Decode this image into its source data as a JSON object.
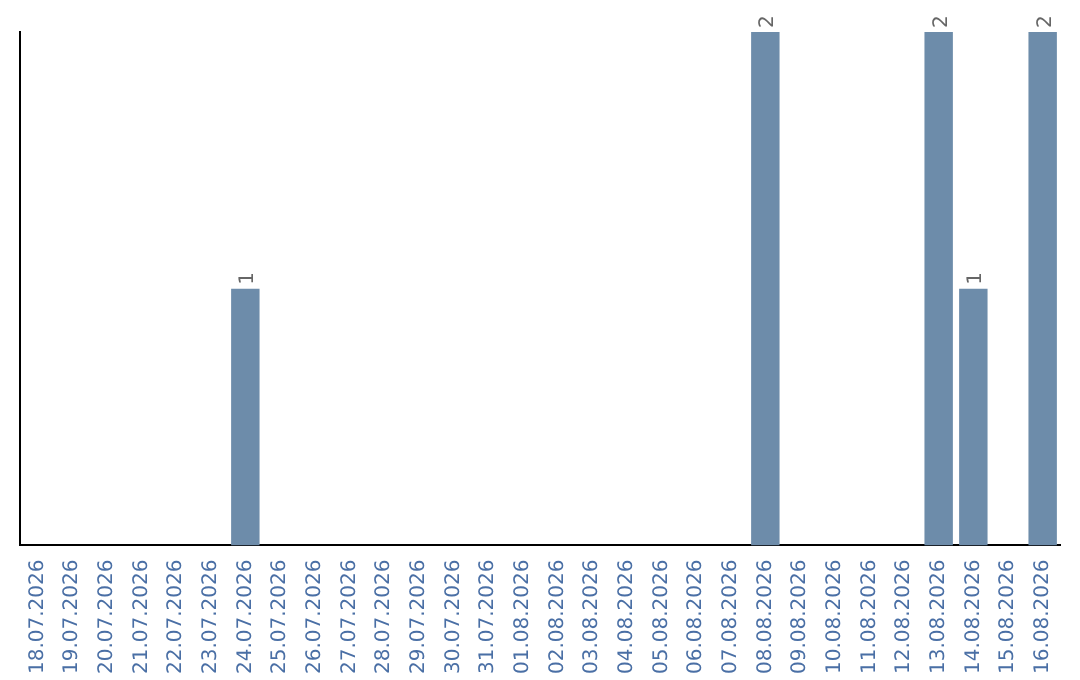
{
  "chart_data": {
    "type": "bar",
    "categories": [
      "18.07.2026",
      "19.07.2026",
      "20.07.2026",
      "21.07.2026",
      "22.07.2026",
      "23.07.2026",
      "24.07.2026",
      "25.07.2026",
      "26.07.2026",
      "27.07.2026",
      "28.07.2026",
      "29.07.2026",
      "30.07.2026",
      "31.07.2026",
      "01.08.2026",
      "02.08.2026",
      "03.08.2026",
      "04.08.2026",
      "05.08.2026",
      "06.08.2026",
      "07.08.2026",
      "08.08.2026",
      "09.08.2026",
      "10.08.2026",
      "11.08.2026",
      "12.08.2026",
      "13.08.2026",
      "14.08.2026",
      "15.08.2026",
      "16.08.2026"
    ],
    "values": [
      0,
      0,
      0,
      0,
      0,
      0,
      1,
      0,
      0,
      0,
      0,
      0,
      0,
      0,
      0,
      0,
      0,
      0,
      0,
      0,
      0,
      2,
      0,
      0,
      0,
      0,
      2,
      1,
      0,
      2
    ],
    "value_labels": [
      null,
      null,
      null,
      null,
      null,
      null,
      "1",
      null,
      null,
      null,
      null,
      null,
      null,
      null,
      null,
      null,
      null,
      null,
      null,
      null,
      null,
      "2",
      null,
      null,
      null,
      null,
      "2",
      "1",
      null,
      "2"
    ],
    "color": "#6d8caa",
    "ylim": [
      0,
      2
    ],
    "tick_labels": "x",
    "grid": false,
    "legend": false
  }
}
